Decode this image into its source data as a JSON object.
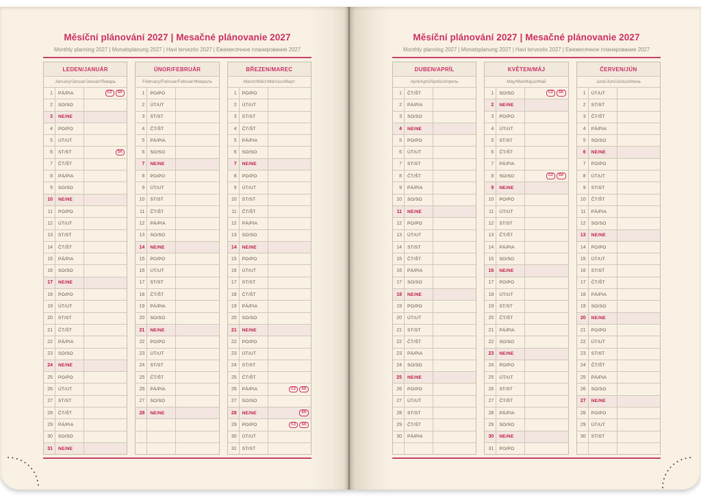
{
  "header": {
    "title": "Měsíční plánování 2027 | Mesačné plánovanie 2027",
    "subtitle": "Monthly planning 2027 | Monatsplanung 2027 | Havi tervezés 2027 | Ежемесячное планирование 2027"
  },
  "colors": {
    "accent_pink": "#cb2e63",
    "sunday_red": "#bd1c43",
    "page_cream": "#f9f2e4",
    "grid_line": "#cfc7b5",
    "sunday_row_bg": "#f3e6e0",
    "month_header_bg": "#f1e9dc"
  },
  "pages": [
    {
      "side": "left",
      "months": [
        {
          "name": "LEDEN/JANUÁR",
          "subtitle": "January/Januar/Január/Январь",
          "empty_rows": 0,
          "rows": [
            {
              "num": "1",
              "day": "PÁ/PIA",
              "badges": [
                "CZ",
                "SK"
              ]
            },
            {
              "num": "2",
              "day": "SO/SO"
            },
            {
              "num": "3",
              "day": "NE/NE",
              "sun": true
            },
            {
              "num": "4",
              "day": "PO/PO"
            },
            {
              "num": "5",
              "day": "ÚT/UT"
            },
            {
              "num": "6",
              "day": "ST/ST",
              "badges": [
                "SK"
              ]
            },
            {
              "num": "7",
              "day": "ČT/ŠT"
            },
            {
              "num": "8",
              "day": "PÁ/PIA"
            },
            {
              "num": "9",
              "day": "SO/SO"
            },
            {
              "num": "10",
              "day": "NE/NE",
              "sun": true
            },
            {
              "num": "11",
              "day": "PO/PO"
            },
            {
              "num": "12",
              "day": "ÚT/UT"
            },
            {
              "num": "13",
              "day": "ST/ST"
            },
            {
              "num": "14",
              "day": "ČT/ŠT"
            },
            {
              "num": "15",
              "day": "PÁ/PIA"
            },
            {
              "num": "16",
              "day": "SO/SO"
            },
            {
              "num": "17",
              "day": "NE/NE",
              "sun": true
            },
            {
              "num": "18",
              "day": "PO/PO"
            },
            {
              "num": "19",
              "day": "ÚT/UT"
            },
            {
              "num": "20",
              "day": "ST/ST"
            },
            {
              "num": "21",
              "day": "ČT/ŠT"
            },
            {
              "num": "22",
              "day": "PÁ/PIA"
            },
            {
              "num": "23",
              "day": "SO/SO"
            },
            {
              "num": "24",
              "day": "NE/NE",
              "sun": true
            },
            {
              "num": "25",
              "day": "PO/PO"
            },
            {
              "num": "26",
              "day": "ÚT/UT"
            },
            {
              "num": "27",
              "day": "ST/ST"
            },
            {
              "num": "28",
              "day": "ČT/ŠT"
            },
            {
              "num": "29",
              "day": "PÁ/PIA"
            },
            {
              "num": "30",
              "day": "SO/SO"
            },
            {
              "num": "31",
              "day": "NE/NE",
              "sun": true
            }
          ]
        },
        {
          "name": "ÚNOR/FEBRUÁR",
          "subtitle": "February/Februar/Február/Февраль",
          "empty_rows": 3,
          "rows": [
            {
              "num": "1",
              "day": "PO/PO"
            },
            {
              "num": "2",
              "day": "ÚT/UT"
            },
            {
              "num": "3",
              "day": "ST/ST"
            },
            {
              "num": "4",
              "day": "ČT/ŠT"
            },
            {
              "num": "5",
              "day": "PÁ/PIA"
            },
            {
              "num": "6",
              "day": "SO/SO"
            },
            {
              "num": "7",
              "day": "NE/NE",
              "sun": true
            },
            {
              "num": "8",
              "day": "PO/PO"
            },
            {
              "num": "9",
              "day": "ÚT/UT"
            },
            {
              "num": "10",
              "day": "ST/ST"
            },
            {
              "num": "11",
              "day": "ČT/ŠT"
            },
            {
              "num": "12",
              "day": "PÁ/PIA"
            },
            {
              "num": "13",
              "day": "SO/SO"
            },
            {
              "num": "14",
              "day": "NE/NE",
              "sun": true
            },
            {
              "num": "15",
              "day": "PO/PO"
            },
            {
              "num": "16",
              "day": "ÚT/UT"
            },
            {
              "num": "17",
              "day": "ST/ST"
            },
            {
              "num": "18",
              "day": "ČT/ŠT"
            },
            {
              "num": "19",
              "day": "PÁ/PIA"
            },
            {
              "num": "20",
              "day": "SO/SO"
            },
            {
              "num": "21",
              "day": "NE/NE",
              "sun": true
            },
            {
              "num": "22",
              "day": "PO/PO"
            },
            {
              "num": "23",
              "day": "ÚT/UT"
            },
            {
              "num": "24",
              "day": "ST/ST"
            },
            {
              "num": "25",
              "day": "ČT/ŠT"
            },
            {
              "num": "26",
              "day": "PÁ/PIA"
            },
            {
              "num": "27",
              "day": "SO/SO"
            },
            {
              "num": "28",
              "day": "NE/NE",
              "sun": true
            }
          ]
        },
        {
          "name": "BŘEZEN/MAREC",
          "subtitle": "March/März/Március/Март",
          "empty_rows": 0,
          "rows": [
            {
              "num": "1",
              "day": "PO/PO"
            },
            {
              "num": "2",
              "day": "ÚT/UT"
            },
            {
              "num": "3",
              "day": "ST/ST"
            },
            {
              "num": "4",
              "day": "ČT/ŠT"
            },
            {
              "num": "5",
              "day": "PÁ/PIA"
            },
            {
              "num": "6",
              "day": "SO/SO"
            },
            {
              "num": "7",
              "day": "NE/NE",
              "sun": true
            },
            {
              "num": "8",
              "day": "PO/PO"
            },
            {
              "num": "9",
              "day": "ÚT/UT"
            },
            {
              "num": "10",
              "day": "ST/ST"
            },
            {
              "num": "11",
              "day": "ČT/ŠT"
            },
            {
              "num": "12",
              "day": "PÁ/PIA"
            },
            {
              "num": "13",
              "day": "SO/SO"
            },
            {
              "num": "14",
              "day": "NE/NE",
              "sun": true
            },
            {
              "num": "15",
              "day": "PO/PO"
            },
            {
              "num": "16",
              "day": "ÚT/UT"
            },
            {
              "num": "17",
              "day": "ST/ST"
            },
            {
              "num": "18",
              "day": "ČT/ŠT"
            },
            {
              "num": "19",
              "day": "PÁ/PIA"
            },
            {
              "num": "20",
              "day": "SO/SO"
            },
            {
              "num": "21",
              "day": "NE/NE",
              "sun": true
            },
            {
              "num": "22",
              "day": "PO/PO"
            },
            {
              "num": "23",
              "day": "ÚT/UT"
            },
            {
              "num": "24",
              "day": "ST/ST"
            },
            {
              "num": "25",
              "day": "ČT/ŠT"
            },
            {
              "num": "26",
              "day": "PÁ/PIA",
              "badges": [
                "CZ",
                "SK"
              ]
            },
            {
              "num": "27",
              "day": "SO/SO"
            },
            {
              "num": "28",
              "day": "NE/NE",
              "sun": true,
              "badges": [
                "SK"
              ]
            },
            {
              "num": "29",
              "day": "PO/PO",
              "badges": [
                "CZ",
                "SK"
              ]
            },
            {
              "num": "30",
              "day": "ÚT/UT"
            },
            {
              "num": "31",
              "day": "ST/ST"
            }
          ]
        }
      ]
    },
    {
      "side": "right",
      "months": [
        {
          "name": "DUBEN/APRÍL",
          "subtitle": "April/April/Április/Апрель",
          "empty_rows": 1,
          "rows": [
            {
              "num": "1",
              "day": "ČT/ŠT"
            },
            {
              "num": "2",
              "day": "PÁ/PIA"
            },
            {
              "num": "3",
              "day": "SO/SO"
            },
            {
              "num": "4",
              "day": "NE/NE",
              "sun": true
            },
            {
              "num": "5",
              "day": "PO/PO"
            },
            {
              "num": "6",
              "day": "ÚT/UT"
            },
            {
              "num": "7",
              "day": "ST/ST"
            },
            {
              "num": "8",
              "day": "ČT/ŠT"
            },
            {
              "num": "9",
              "day": "PÁ/PIA"
            },
            {
              "num": "10",
              "day": "SO/SO"
            },
            {
              "num": "11",
              "day": "NE/NE",
              "sun": true
            },
            {
              "num": "12",
              "day": "PO/PO"
            },
            {
              "num": "13",
              "day": "ÚT/UT"
            },
            {
              "num": "14",
              "day": "ST/ST"
            },
            {
              "num": "15",
              "day": "ČT/ŠT"
            },
            {
              "num": "16",
              "day": "PÁ/PIA"
            },
            {
              "num": "17",
              "day": "SO/SO"
            },
            {
              "num": "18",
              "day": "NE/NE",
              "sun": true
            },
            {
              "num": "19",
              "day": "PO/PO"
            },
            {
              "num": "20",
              "day": "ÚT/UT"
            },
            {
              "num": "21",
              "day": "ST/ST"
            },
            {
              "num": "22",
              "day": "ČT/ŠT"
            },
            {
              "num": "23",
              "day": "PÁ/PIA"
            },
            {
              "num": "24",
              "day": "SO/SO"
            },
            {
              "num": "25",
              "day": "NE/NE",
              "sun": true
            },
            {
              "num": "26",
              "day": "PO/PO"
            },
            {
              "num": "27",
              "day": "ÚT/UT"
            },
            {
              "num": "28",
              "day": "ST/ST"
            },
            {
              "num": "29",
              "day": "ČT/ŠT"
            },
            {
              "num": "30",
              "day": "PÁ/PIA"
            }
          ]
        },
        {
          "name": "KVĚTEN/MÁJ",
          "subtitle": "May/Mai/Május/Май",
          "empty_rows": 0,
          "rows": [
            {
              "num": "1",
              "day": "SO/SO",
              "badges": [
                "CZ",
                "SK"
              ]
            },
            {
              "num": "2",
              "day": "NE/NE",
              "sun": true
            },
            {
              "num": "3",
              "day": "PO/PO"
            },
            {
              "num": "4",
              "day": "ÚT/UT"
            },
            {
              "num": "5",
              "day": "ST/ST"
            },
            {
              "num": "6",
              "day": "ČT/ŠT"
            },
            {
              "num": "7",
              "day": "PÁ/PIA"
            },
            {
              "num": "8",
              "day": "SO/SO",
              "badges": [
                "CZ",
                "SK"
              ]
            },
            {
              "num": "9",
              "day": "NE/NE",
              "sun": true
            },
            {
              "num": "10",
              "day": "PO/PO"
            },
            {
              "num": "11",
              "day": "ÚT/UT"
            },
            {
              "num": "12",
              "day": "ST/ST"
            },
            {
              "num": "13",
              "day": "ČT/ŠT"
            },
            {
              "num": "14",
              "day": "PÁ/PIA"
            },
            {
              "num": "15",
              "day": "SO/SO"
            },
            {
              "num": "16",
              "day": "NE/NE",
              "sun": true
            },
            {
              "num": "17",
              "day": "PO/PO"
            },
            {
              "num": "18",
              "day": "ÚT/UT"
            },
            {
              "num": "19",
              "day": "ST/ST"
            },
            {
              "num": "20",
              "day": "ČT/ŠT"
            },
            {
              "num": "21",
              "day": "PÁ/PIA"
            },
            {
              "num": "22",
              "day": "SO/SO"
            },
            {
              "num": "23",
              "day": "NE/NE",
              "sun": true
            },
            {
              "num": "24",
              "day": "PO/PO"
            },
            {
              "num": "25",
              "day": "ÚT/UT"
            },
            {
              "num": "26",
              "day": "ST/ST"
            },
            {
              "num": "27",
              "day": "ČT/ŠT"
            },
            {
              "num": "28",
              "day": "PÁ/PIA"
            },
            {
              "num": "29",
              "day": "SO/SO"
            },
            {
              "num": "30",
              "day": "NE/NE",
              "sun": true
            },
            {
              "num": "31",
              "day": "PO/PO"
            }
          ]
        },
        {
          "name": "ČERVEN/JÚN",
          "subtitle": "June/Juni/Június/Июнь",
          "empty_rows": 1,
          "rows": [
            {
              "num": "1",
              "day": "ÚT/UT"
            },
            {
              "num": "2",
              "day": "ST/ST"
            },
            {
              "num": "3",
              "day": "ČT/ŠT"
            },
            {
              "num": "4",
              "day": "PÁ/PIA"
            },
            {
              "num": "5",
              "day": "SO/SO"
            },
            {
              "num": "6",
              "day": "NE/NE",
              "sun": true
            },
            {
              "num": "7",
              "day": "PO/PO"
            },
            {
              "num": "8",
              "day": "ÚT/UT"
            },
            {
              "num": "9",
              "day": "ST/ST"
            },
            {
              "num": "10",
              "day": "ČT/ŠT"
            },
            {
              "num": "11",
              "day": "PÁ/PIA"
            },
            {
              "num": "12",
              "day": "SO/SO"
            },
            {
              "num": "13",
              "day": "NE/NE",
              "sun": true
            },
            {
              "num": "14",
              "day": "PO/PO"
            },
            {
              "num": "15",
              "day": "ÚT/UT"
            },
            {
              "num": "16",
              "day": "ST/ST"
            },
            {
              "num": "17",
              "day": "ČT/ŠT"
            },
            {
              "num": "18",
              "day": "PÁ/PIA"
            },
            {
              "num": "19",
              "day": "SO/SO"
            },
            {
              "num": "20",
              "day": "NE/NE",
              "sun": true
            },
            {
              "num": "21",
              "day": "PO/PO"
            },
            {
              "num": "22",
              "day": "ÚT/UT"
            },
            {
              "num": "23",
              "day": "ST/ST"
            },
            {
              "num": "24",
              "day": "ČT/ŠT"
            },
            {
              "num": "25",
              "day": "PÁ/PIA"
            },
            {
              "num": "26",
              "day": "SO/SO"
            },
            {
              "num": "27",
              "day": "NE/NE",
              "sun": true
            },
            {
              "num": "28",
              "day": "PO/PO"
            },
            {
              "num": "29",
              "day": "ÚT/UT"
            },
            {
              "num": "30",
              "day": "ST/ST"
            }
          ]
        }
      ]
    }
  ]
}
